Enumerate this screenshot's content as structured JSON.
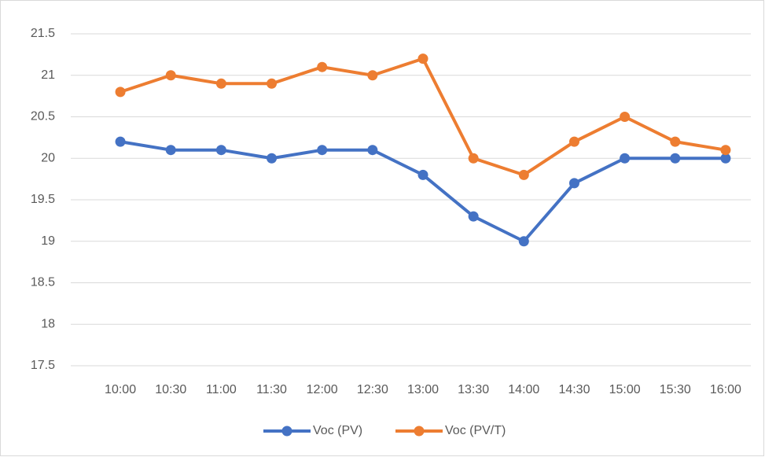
{
  "chart_data": {
    "type": "line",
    "categories": [
      "10:00",
      "10:30",
      "11:00",
      "11:30",
      "12:00",
      "12:30",
      "13:00",
      "13:30",
      "14:00",
      "14:30",
      "15:00",
      "15:30",
      "16:00"
    ],
    "series": [
      {
        "name": "Voc (PV)",
        "color": "#4472c4",
        "values": [
          20.2,
          20.1,
          20.1,
          20.0,
          20.1,
          20.1,
          19.8,
          19.3,
          19.0,
          19.7,
          20.0,
          20.0,
          20.0
        ]
      },
      {
        "name": "Voc (PV/T)",
        "color": "#ed7d31",
        "values": [
          20.8,
          21.0,
          20.9,
          20.9,
          21.1,
          21.0,
          21.2,
          20.0,
          19.8,
          20.2,
          20.5,
          20.2,
          20.1
        ]
      }
    ],
    "ylim": [
      17.5,
      21.5
    ],
    "yticks": [
      17.5,
      18,
      18.5,
      19,
      19.5,
      20,
      20.5,
      21,
      21.5
    ],
    "grid": true,
    "legend": "bottom"
  }
}
